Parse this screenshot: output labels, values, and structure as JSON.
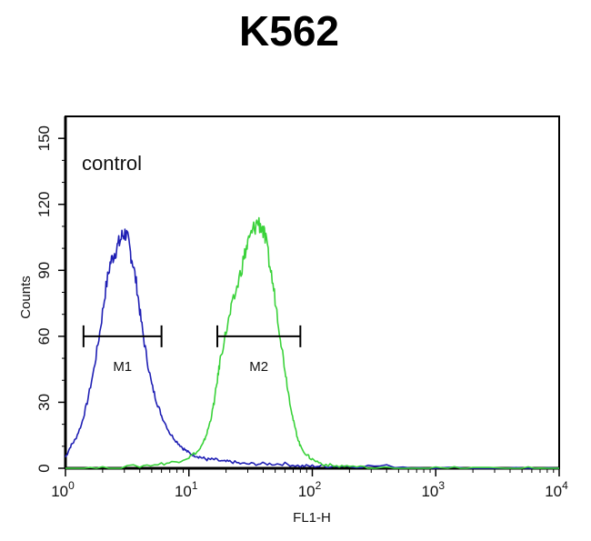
{
  "chart_data": {
    "type": "line",
    "title": "K562",
    "xlabel": "FL1-H",
    "ylabel": "Counts",
    "xscale": "log",
    "xlim": [
      1,
      10000
    ],
    "ylim": [
      0,
      160
    ],
    "yticks": [
      "0",
      "30",
      "60",
      "90",
      "120",
      "150"
    ],
    "xticks": [
      {
        "base": "10",
        "exp": "0"
      },
      {
        "base": "10",
        "exp": "1"
      },
      {
        "base": "10",
        "exp": "2"
      },
      {
        "base": "10",
        "exp": "3"
      },
      {
        "base": "10",
        "exp": "4"
      }
    ],
    "annotation": "control",
    "series": [
      {
        "color": "#1f1fb4",
        "x": [
          1.0,
          1.1,
          1.2,
          1.35,
          1.5,
          1.7,
          1.9,
          2.1,
          2.3,
          2.5,
          2.7,
          2.9,
          3.1,
          3.3,
          3.5,
          3.8,
          4.1,
          4.5,
          5.0,
          5.5,
          6.0,
          7.0,
          8.0,
          9.0,
          10.0,
          11.0,
          12.5,
          14.0,
          16.0,
          19.0,
          22.0,
          27.0,
          35.0,
          45.0,
          60.0,
          80.0,
          100.0,
          130.0,
          200.0,
          400.0,
          1000.0,
          3000.0,
          10000.0
        ],
        "y": [
          5,
          10,
          13,
          20,
          30,
          45,
          62,
          80,
          93,
          98,
          102,
          106,
          107,
          100,
          94,
          82,
          67,
          52,
          38,
          30,
          24,
          16,
          12,
          9,
          7,
          6,
          5,
          4,
          4,
          3,
          3,
          2,
          2,
          2,
          2,
          1,
          1,
          1,
          1,
          1,
          0,
          0,
          0
        ]
      },
      {
        "color": "#3ad23a",
        "x": [
          1.0,
          2.0,
          4.0,
          6.0,
          8.0,
          10.0,
          12.0,
          13.0,
          14.0,
          15.0,
          16.0,
          17.0,
          18.0,
          20.0,
          22.0,
          25.0,
          28.0,
          30.0,
          33.0,
          36.0,
          39.0,
          42.0,
          46.0,
          50.0,
          55.0,
          60.0,
          65.0,
          70.0,
          75.0,
          80.0,
          90.0,
          100.0,
          120.0,
          150.0,
          200.0,
          300.0,
          500.0,
          1000.0,
          2000.0,
          5000.0,
          10000.0
        ],
        "y": [
          0,
          0,
          1,
          2,
          3,
          5,
          8,
          11,
          16,
          22,
          30,
          40,
          50,
          62,
          72,
          84,
          96,
          102,
          108,
          112,
          110,
          103,
          90,
          77,
          60,
          45,
          32,
          22,
          15,
          10,
          6,
          4,
          2,
          1,
          1,
          0,
          0,
          0,
          0,
          0,
          0
        ]
      }
    ],
    "gates": [
      {
        "label": "M1",
        "x_range": [
          1.4,
          6.0
        ],
        "y": 60
      },
      {
        "label": "M2",
        "x_range": [
          17.0,
          80.0
        ],
        "y": 60
      }
    ]
  }
}
